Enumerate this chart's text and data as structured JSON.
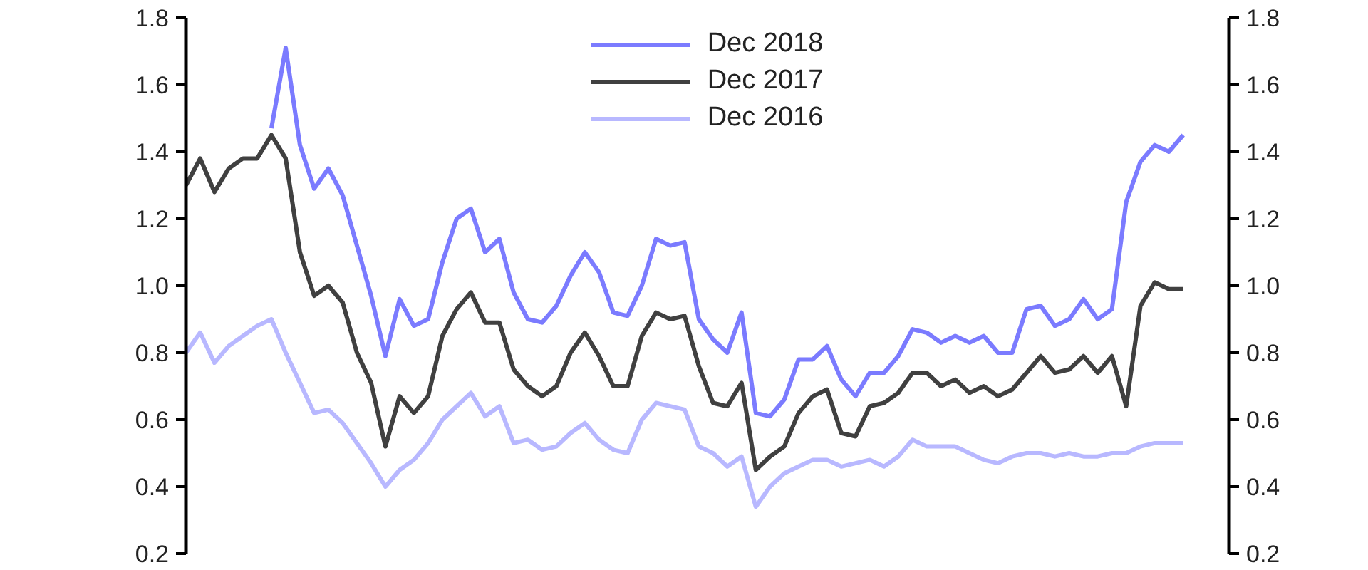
{
  "chart_data": {
    "type": "line",
    "categories": [
      null,
      null,
      null,
      null,
      null,
      null,
      null,
      null,
      null,
      null,
      null,
      null,
      null,
      null,
      null,
      null,
      null,
      null,
      null,
      null,
      null,
      null,
      null,
      null,
      null,
      null,
      null,
      null,
      null,
      null,
      null,
      null,
      null,
      null,
      null,
      null,
      null,
      null,
      null,
      null,
      null,
      null,
      null,
      null,
      null,
      null,
      null,
      null,
      null,
      null,
      null,
      null,
      null,
      null,
      null,
      null,
      null,
      null,
      null,
      null,
      null,
      null,
      null,
      null,
      null,
      null,
      null,
      null,
      null,
      null,
      null
    ],
    "series": [
      {
        "name": "Dec 2018",
        "color": "#7b7bff",
        "values": [
          null,
          null,
          null,
          null,
          null,
          null,
          1.47,
          1.71,
          1.42,
          1.29,
          1.35,
          1.27,
          1.12,
          0.97,
          0.79,
          0.96,
          0.88,
          0.9,
          1.07,
          1.2,
          1.23,
          1.1,
          1.14,
          0.98,
          0.9,
          0.89,
          0.94,
          1.03,
          1.1,
          1.04,
          0.92,
          0.91,
          1.0,
          1.14,
          1.12,
          1.13,
          0.9,
          0.84,
          0.8,
          0.92,
          0.62,
          0.61,
          0.66,
          0.78,
          0.78,
          0.82,
          0.72,
          0.67,
          0.74,
          0.74,
          0.79,
          0.87,
          0.86,
          0.83,
          0.85,
          0.83,
          0.85,
          0.8,
          0.8,
          0.93,
          0.94,
          0.88,
          0.9,
          0.96,
          0.9,
          0.93,
          1.25,
          1.37,
          1.42,
          1.4,
          1.45
        ]
      },
      {
        "name": "Dec 2017",
        "color": "#404040",
        "values": [
          1.3,
          1.38,
          1.28,
          1.35,
          1.38,
          1.38,
          1.45,
          1.38,
          1.1,
          0.97,
          1.0,
          0.95,
          0.8,
          0.71,
          0.52,
          0.67,
          0.62,
          0.67,
          0.85,
          0.93,
          0.98,
          0.89,
          0.89,
          0.75,
          0.7,
          0.67,
          0.7,
          0.8,
          0.86,
          0.79,
          0.7,
          0.7,
          0.85,
          0.92,
          0.9,
          0.91,
          0.76,
          0.65,
          0.64,
          0.71,
          0.45,
          0.49,
          0.52,
          0.62,
          0.67,
          0.69,
          0.56,
          0.55,
          0.64,
          0.65,
          0.68,
          0.74,
          0.74,
          0.7,
          0.72,
          0.68,
          0.7,
          0.67,
          0.69,
          0.74,
          0.79,
          0.74,
          0.75,
          0.79,
          0.74,
          0.79,
          0.64,
          0.94,
          1.01,
          0.99,
          0.99
        ]
      },
      {
        "name": "Dec 2016",
        "color": "#b8b8ff",
        "values": [
          0.8,
          0.86,
          0.77,
          0.82,
          0.85,
          0.88,
          0.9,
          0.8,
          0.71,
          0.62,
          0.63,
          0.59,
          0.53,
          0.47,
          0.4,
          0.45,
          0.48,
          0.53,
          0.6,
          0.64,
          0.68,
          0.61,
          0.64,
          0.53,
          0.54,
          0.51,
          0.52,
          0.56,
          0.59,
          0.54,
          0.51,
          0.5,
          0.6,
          0.65,
          0.64,
          0.63,
          0.52,
          0.5,
          0.46,
          0.49,
          0.34,
          0.4,
          0.44,
          0.46,
          0.48,
          0.48,
          0.46,
          0.47,
          0.48,
          0.46,
          0.49,
          0.54,
          0.52,
          0.52,
          0.52,
          0.5,
          0.48,
          0.47,
          0.49,
          0.5,
          0.5,
          0.49,
          0.5,
          0.49,
          0.49,
          0.5,
          0.5,
          0.52,
          0.53,
          0.53,
          0.53
        ]
      }
    ],
    "ylim": [
      0.2,
      1.8
    ],
    "yticks": [
      0.2,
      0.4,
      0.6,
      0.8,
      {
        "value": 1,
        "label": "1.0"
      },
      1.2,
      1.4,
      1.6,
      1.8
    ],
    "y2lim": [
      0.2,
      1.8
    ],
    "y2ticks": [
      0.2,
      0.4,
      0.6,
      0.8,
      {
        "value": 1,
        "label": "1.0"
      },
      1.2,
      1.4,
      1.6,
      1.8
    ],
    "grid": false,
    "legend": "top",
    "marker": "none",
    "line_style": "solid"
  }
}
